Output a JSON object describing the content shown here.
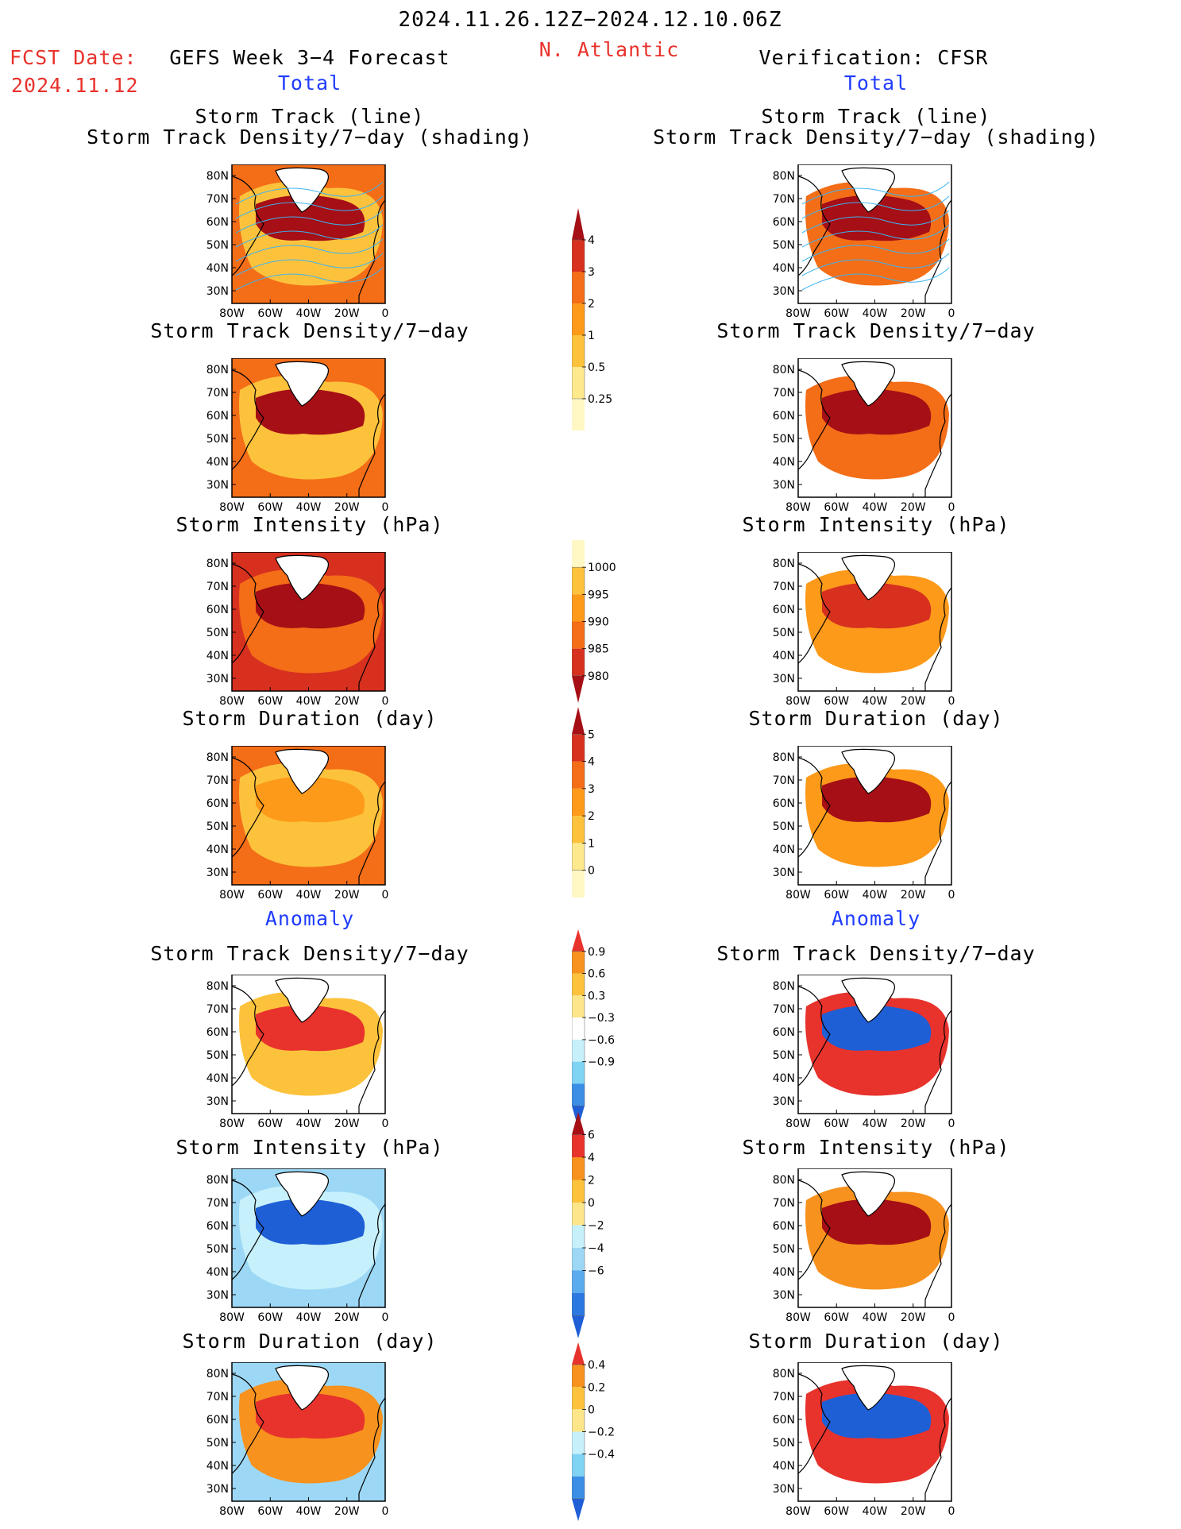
{
  "header": {
    "date_range": "2024.11.26.12Z−2024.12.10.06Z",
    "fcst_label": "FCST Date:",
    "fcst_date": "2024.11.12",
    "forecast_title": "GEFS Week 3−4 Forecast",
    "region": "N. Atlantic",
    "verification_title": "Verification: CFSR",
    "total_left": "Total",
    "total_right": "Total",
    "anomaly_left": "Anomaly",
    "anomaly_right": "Anomaly"
  },
  "panel_titles": {
    "track_line": "Storm Track (line)",
    "track_shading": "Storm Track Density/7−day (shading)",
    "density": "Storm Track Density/7−day",
    "intensity": "Storm Intensity (hPa)",
    "duration": "Storm Duration (day)"
  },
  "axes": {
    "lat_ticks": [
      "80N",
      "70N",
      "60N",
      "50N",
      "40N",
      "30N"
    ],
    "lon_ticks": [
      "80W",
      "60W",
      "40W",
      "20W",
      "0"
    ]
  },
  "colorbars": {
    "density_total": {
      "labels": [
        "4",
        "3",
        "2",
        "1",
        "0.5",
        "0.25"
      ],
      "colors": [
        "#a50f15",
        "#d7301f",
        "#f46d17",
        "#fd9a1a",
        "#fdc23c",
        "#fee98c",
        "#fff8c4"
      ]
    },
    "intensity_total": {
      "labels": [
        "1000",
        "995",
        "990",
        "985",
        "980"
      ],
      "colors": [
        "#fff8c4",
        "#fdc23c",
        "#fd9a1a",
        "#f46d17",
        "#d7301f",
        "#a50f15"
      ]
    },
    "duration_total": {
      "labels": [
        "5",
        "4",
        "3",
        "2",
        "1",
        "0"
      ],
      "colors": [
        "#a50f15",
        "#d7301f",
        "#f46d17",
        "#fd9a1a",
        "#fdc23c",
        "#fee98c",
        "#fff8c4"
      ]
    },
    "density_anom": {
      "labels": [
        "0.9",
        "0.6",
        "0.3",
        "−0.3",
        "−0.6",
        "−0.9"
      ],
      "colors": [
        "#e8322c",
        "#f7921e",
        "#fdc23c",
        "#fde68a",
        "#ffffff",
        "#c6f0fb",
        "#7fd3f5",
        "#3a8ee6",
        "#1f5fd6"
      ]
    },
    "intensity_anom": {
      "labels": [
        "6",
        "4",
        "2",
        "0",
        "−2",
        "−4",
        "−6"
      ],
      "colors": [
        "#a50f15",
        "#e8322c",
        "#f7921e",
        "#fdc23c",
        "#fde68a",
        "#c6f0fb",
        "#9cd8f5",
        "#5aaaee",
        "#2a78e0",
        "#1f5fd6"
      ]
    },
    "duration_anom": {
      "labels": [
        "0.4",
        "0.2",
        "0",
        "−0.2",
        "−0.4"
      ],
      "colors": [
        "#e8322c",
        "#f7921e",
        "#fdc23c",
        "#fde68a",
        "#c6f0fb",
        "#7fd3f5",
        "#3a8ee6",
        "#1f5fd6"
      ]
    }
  },
  "palette": {
    "dark_red": "#a50f15",
    "red": "#d7301f",
    "orange_red": "#f46d17",
    "orange": "#fd9a1a",
    "gold": "#fdc23c",
    "light_yellow": "#fee98c",
    "pale_blue": "#c6f0fb",
    "light_blue": "#7fd3f5",
    "blue": "#1f5fd6",
    "track_line": "#3db4f2",
    "title_blue": "#1f3cff",
    "title_red": "#e8322c"
  },
  "maps": {
    "left": [
      {
        "title_key": "track_shading",
        "fill": "#f46d17",
        "inner": "#a50f15",
        "outer": "#fdc23c",
        "tracks": true
      },
      {
        "title_key": "density",
        "fill": "#f46d17",
        "inner": "#a50f15",
        "outer": "#fdc23c"
      },
      {
        "title_key": "intensity",
        "fill": "#d7301f",
        "inner": "#a50f15",
        "outer": "#f46d17"
      },
      {
        "title_key": "duration",
        "fill": "#f46d17",
        "inner": "#fd9a1a",
        "outer": "#fdc23c"
      },
      {
        "title_key": "density",
        "fill": "#ffffff",
        "inner": "#e8322c",
        "outer": "#fdc23c"
      },
      {
        "title_key": "intensity",
        "fill": "#9cd8f5",
        "inner": "#1f5fd6",
        "outer": "#c6f0fb"
      },
      {
        "title_key": "duration",
        "fill": "#9cd8f5",
        "inner": "#e8322c",
        "outer": "#f7921e"
      }
    ],
    "right": [
      {
        "title_key": "track_shading",
        "fill": "#ffffff",
        "inner": "#a50f15",
        "outer": "#f46d17",
        "tracks": true
      },
      {
        "title_key": "density",
        "fill": "#ffffff",
        "inner": "#a50f15",
        "outer": "#f46d17"
      },
      {
        "title_key": "intensity",
        "fill": "#ffffff",
        "inner": "#d7301f",
        "outer": "#fd9a1a"
      },
      {
        "title_key": "duration",
        "fill": "#ffffff",
        "inner": "#a50f15",
        "outer": "#fd9a1a"
      },
      {
        "title_key": "density",
        "fill": "#ffffff",
        "inner": "#1f5fd6",
        "outer": "#e8322c"
      },
      {
        "title_key": "intensity",
        "fill": "#ffffff",
        "inner": "#a50f15",
        "outer": "#f7921e"
      },
      {
        "title_key": "duration",
        "fill": "#ffffff",
        "inner": "#1f5fd6",
        "outer": "#e8322c"
      }
    ]
  }
}
